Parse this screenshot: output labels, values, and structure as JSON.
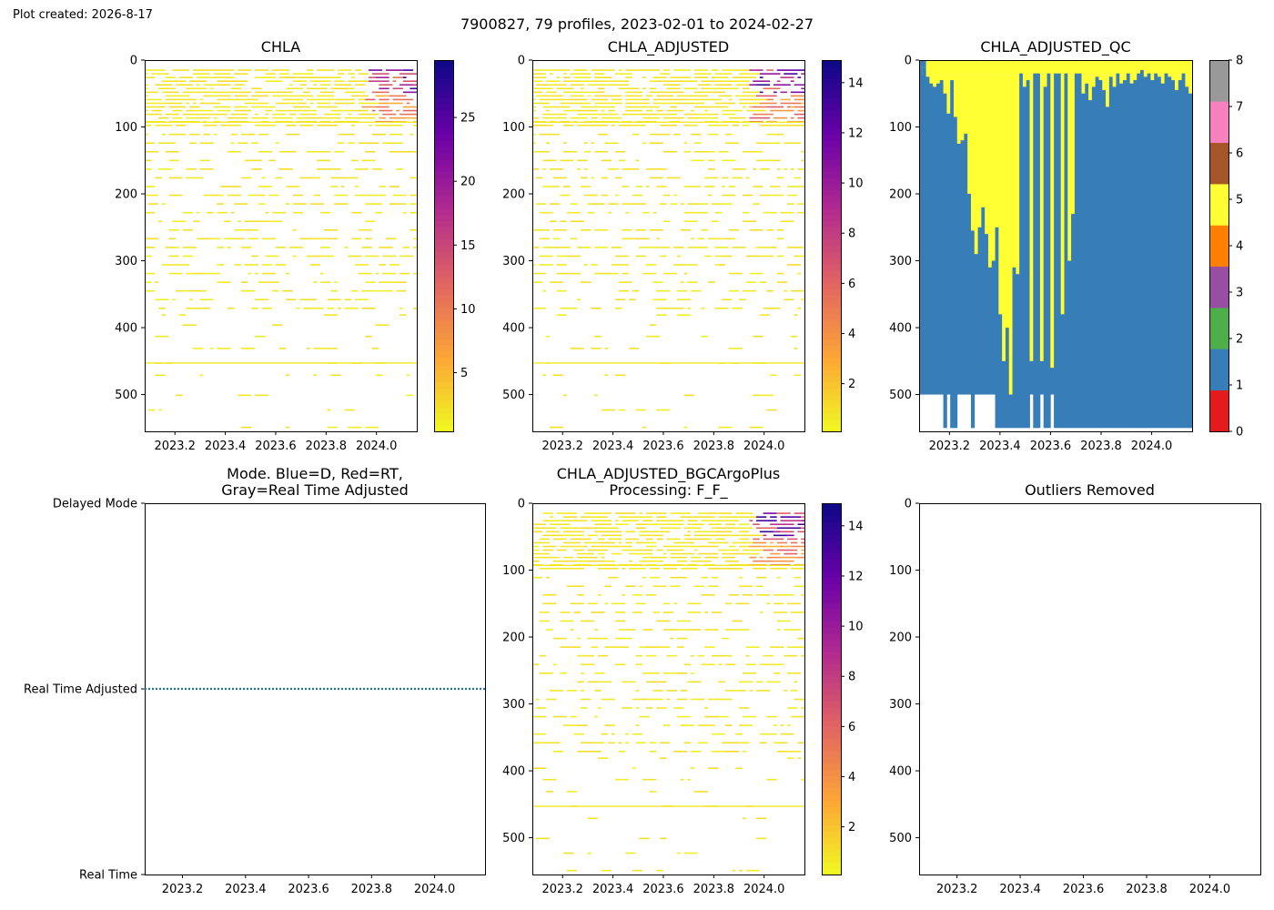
{
  "created_label": "Plot created: 2026-8-17",
  "suptitle": "7900827, 79 profiles, 2023-02-01 to 2024-02-27",
  "colors": {
    "qc": [
      "#e41a1c",
      "#377eb8",
      "#4daf4a",
      "#984ea3",
      "#ff7f00",
      "#ffff33",
      "#a65628",
      "#f781bf",
      "#999999"
    ],
    "plasma_stops": [
      "#f0f921",
      "#fca636",
      "#e16462",
      "#b12a90",
      "#6a00a8",
      "#0d0887"
    ],
    "mode_line": "#1f77b4"
  },
  "chart_data": [
    {
      "id": "chla",
      "type": "heatmap",
      "title": "CHLA",
      "xlim": [
        2023.08,
        2024.16
      ],
      "ylim": [
        555,
        0
      ],
      "y_inverted": true,
      "xticks": [
        "2023.2",
        "2023.4",
        "2023.6",
        "2023.8",
        "2024.0"
      ],
      "yticks": [
        "0",
        "100",
        "200",
        "300",
        "400",
        "500"
      ],
      "colorbar": {
        "range": [
          0.4,
          29.5
        ],
        "ticks": [
          "5",
          "10",
          "15",
          "20",
          "25"
        ],
        "tick_values": [
          5,
          10,
          15,
          20,
          25
        ],
        "colormap": "plasma_r"
      }
    },
    {
      "id": "chla_adj",
      "type": "heatmap",
      "title": "CHLA_ADJUSTED",
      "xlim": [
        2023.08,
        2024.16
      ],
      "ylim": [
        555,
        0
      ],
      "y_inverted": true,
      "xticks": [
        "2023.2",
        "2023.4",
        "2023.6",
        "2023.8",
        "2024.0"
      ],
      "yticks": [
        "0",
        "100",
        "200",
        "300",
        "400",
        "500"
      ],
      "colorbar": {
        "range": [
          0.1,
          14.9
        ],
        "ticks": [
          "2",
          "4",
          "6",
          "8",
          "10",
          "12",
          "14"
        ],
        "tick_values": [
          2,
          4,
          6,
          8,
          10,
          12,
          14
        ],
        "colormap": "plasma_r"
      }
    },
    {
      "id": "chla_adj_qc",
      "type": "heatmap",
      "title": "CHLA_ADJUSTED_QC",
      "xlim": [
        2023.08,
        2024.16
      ],
      "ylim": [
        555,
        0
      ],
      "y_inverted": true,
      "xticks": [
        "2023.2",
        "2023.4",
        "2023.6",
        "2023.8",
        "2024.0"
      ],
      "yticks": [
        "0",
        "100",
        "200",
        "300",
        "400",
        "500"
      ],
      "colorbar": {
        "range": [
          0,
          8
        ],
        "ticks": [
          "0",
          "1",
          "2",
          "3",
          "4",
          "5",
          "6",
          "7",
          "8"
        ],
        "tick_values": [
          0,
          1,
          2,
          3,
          4,
          5,
          6,
          7,
          8
        ],
        "colormap": "qc"
      }
    },
    {
      "id": "mode",
      "type": "line",
      "title_lines": [
        "Mode. Blue=D, Red=RT,",
        "Gray=Real Time Adjusted"
      ],
      "xlim": [
        2023.08,
        2024.16
      ],
      "xticks": [
        "2023.2",
        "2023.4",
        "2023.6",
        "2023.8",
        "2024.0"
      ],
      "ycategories": [
        "Delayed Mode",
        "Real Time Adjusted",
        "Real Time"
      ],
      "series": [
        {
          "level": "Real Time Adjusted",
          "style": "dotted"
        }
      ]
    },
    {
      "id": "bgc_plus",
      "type": "heatmap",
      "title_lines": [
        "CHLA_ADJUSTED_BGCArgoPlus",
        "Processing: F_F_"
      ],
      "xlim": [
        2023.08,
        2024.16
      ],
      "ylim": [
        555,
        0
      ],
      "y_inverted": true,
      "xticks": [
        "2023.2",
        "2023.4",
        "2023.6",
        "2023.8",
        "2024.0"
      ],
      "yticks": [
        "0",
        "100",
        "200",
        "300",
        "400",
        "500"
      ],
      "colorbar": {
        "range": [
          0.1,
          14.9
        ],
        "ticks": [
          "2",
          "4",
          "6",
          "8",
          "10",
          "12",
          "14"
        ],
        "tick_values": [
          2,
          4,
          6,
          8,
          10,
          12,
          14
        ],
        "colormap": "plasma_r"
      }
    },
    {
      "id": "outliers",
      "type": "scatter",
      "title": "Outliers Removed",
      "xlim": [
        2023.08,
        2024.16
      ],
      "ylim": [
        555,
        0
      ],
      "y_inverted": true,
      "xticks": [
        "2023.2",
        "2023.4",
        "2023.6",
        "2023.8",
        "2024.0"
      ],
      "yticks": [
        "0",
        "100",
        "200",
        "300",
        "400",
        "500"
      ]
    }
  ]
}
